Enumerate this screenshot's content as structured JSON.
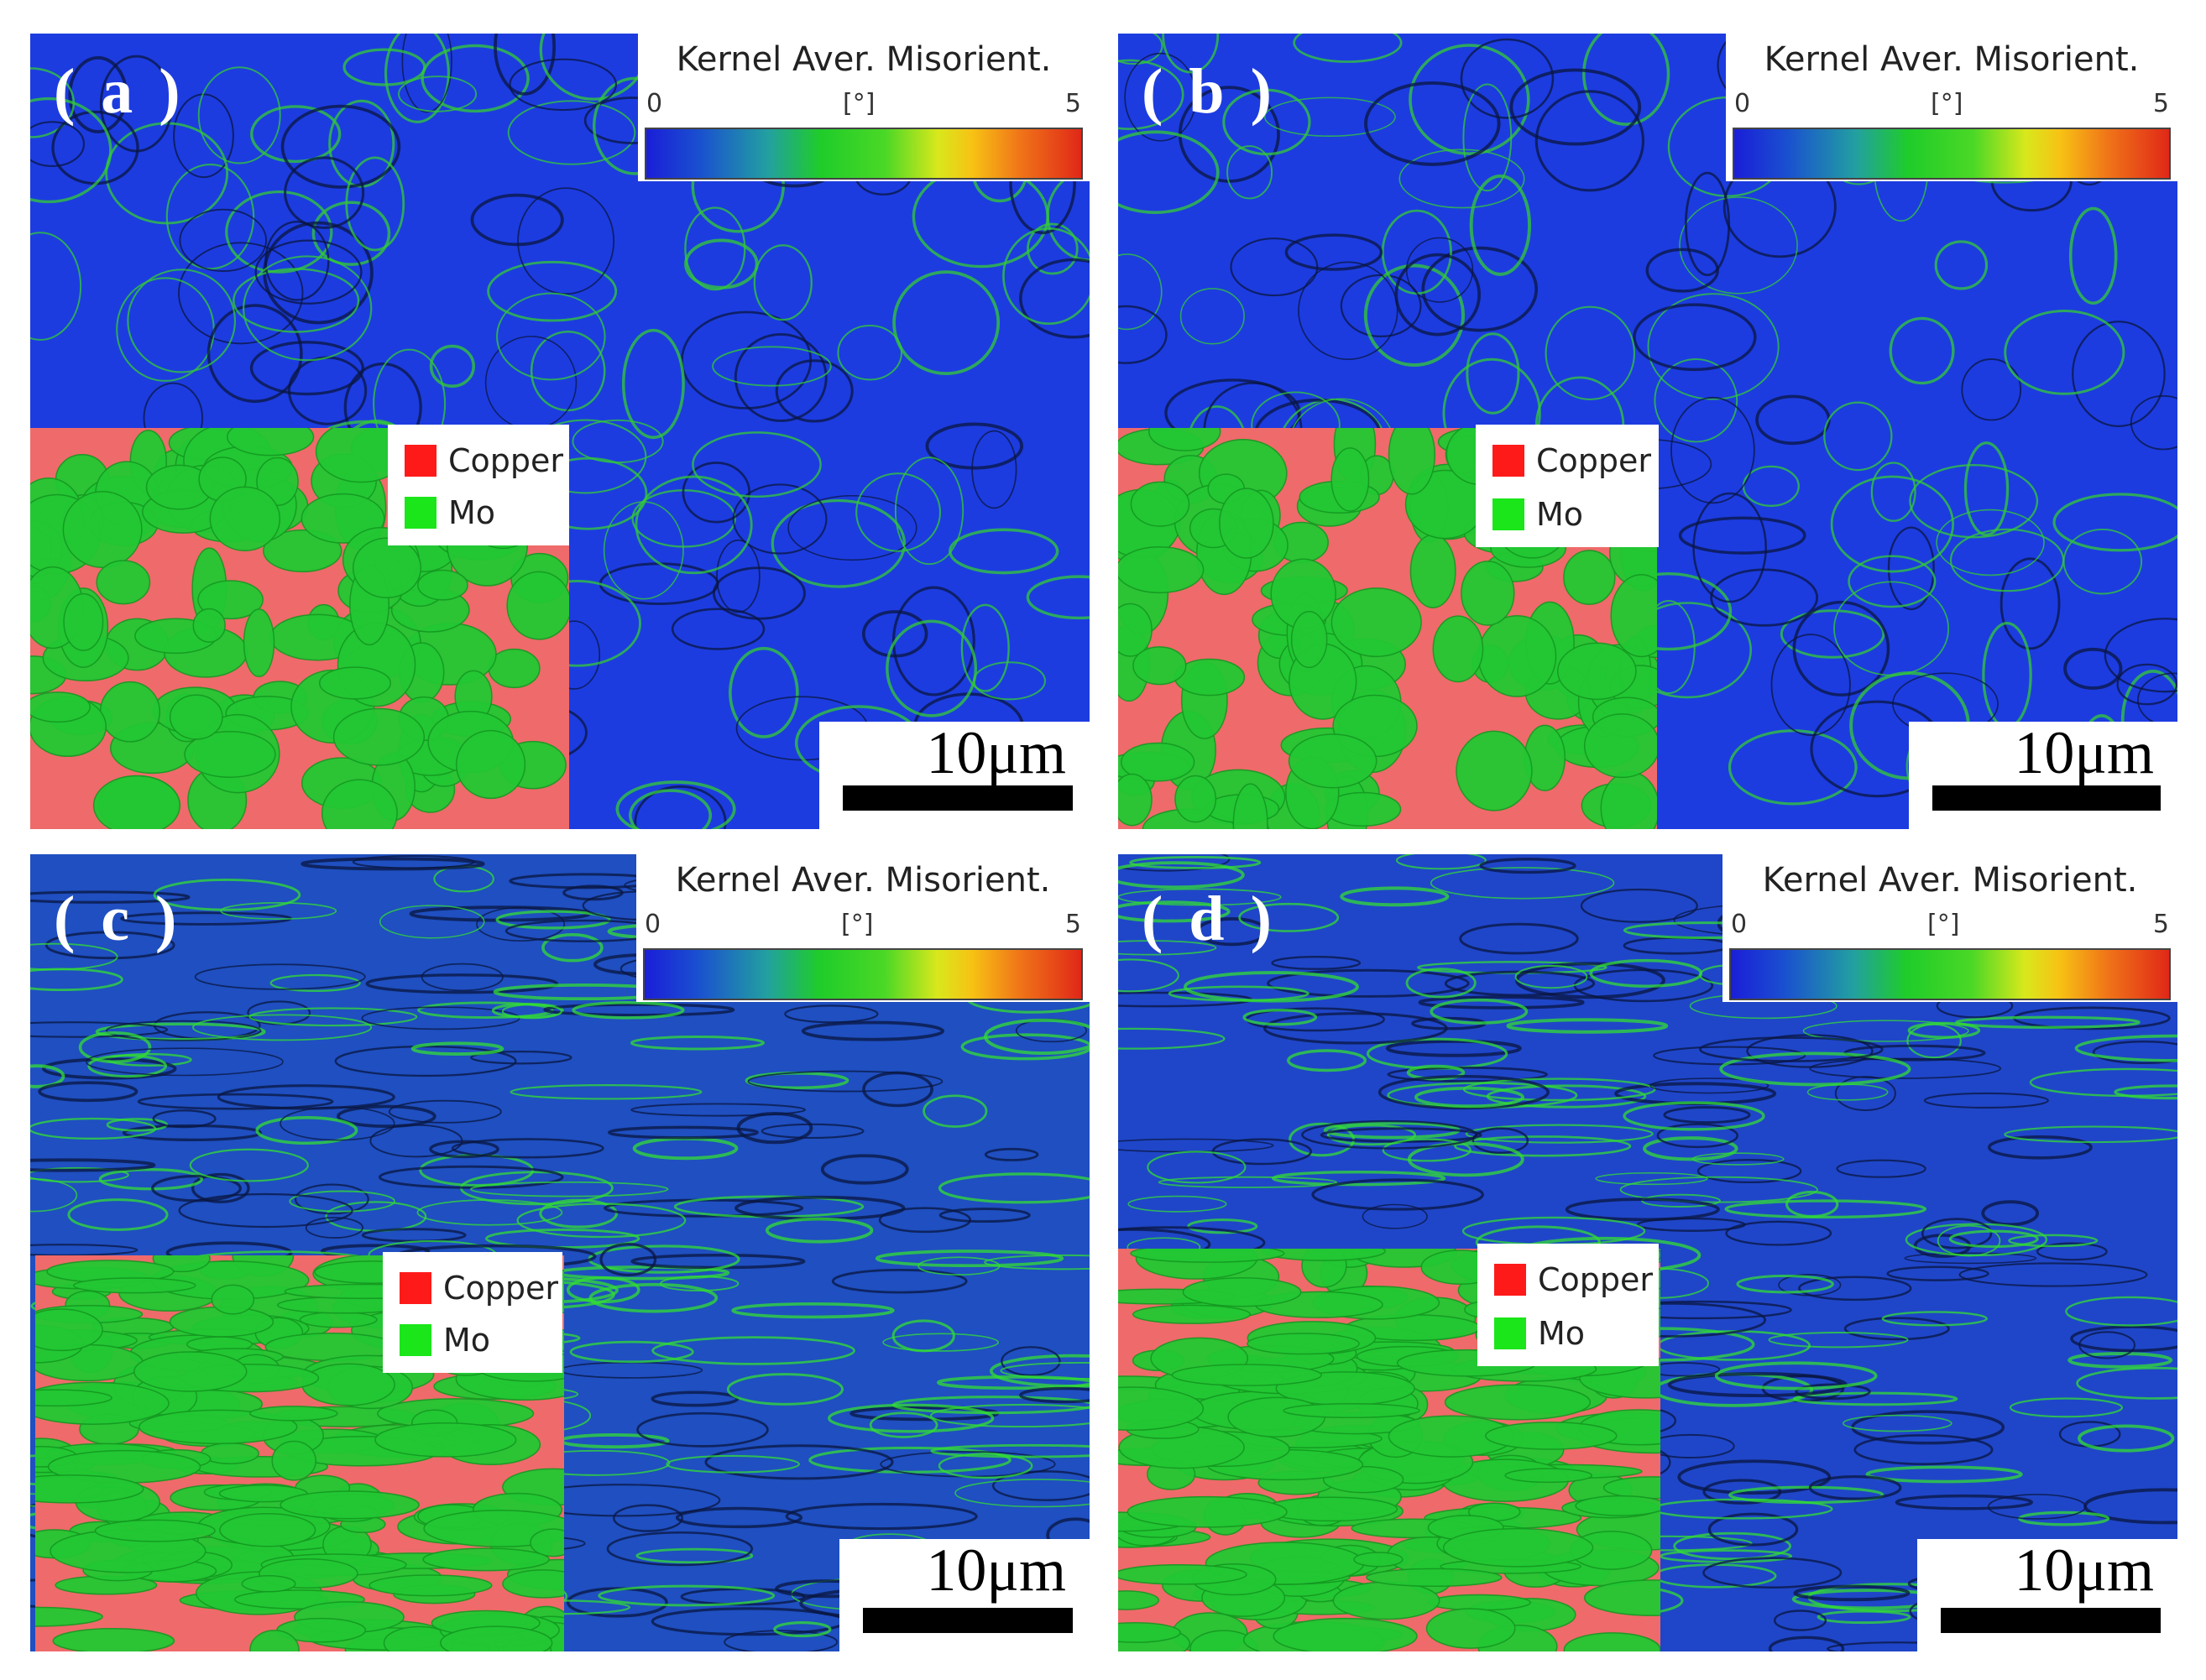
{
  "figure": {
    "colorbar": {
      "title": "Kernel Aver. Misorient.",
      "min": "0",
      "unit": "[°]",
      "max": "5"
    },
    "legend": [
      {
        "label": "Copper",
        "color": "#ff1a1a"
      },
      {
        "label": "Mo",
        "color": "#1ae61a"
      }
    ],
    "scale_bar": "10μm",
    "panels": [
      {
        "id": "a",
        "label": "( a )",
        "map_color": "#1c3ce0",
        "accent_color": "#33cc33",
        "phase_pattern": "equiaxed"
      },
      {
        "id": "b",
        "label": "( b )",
        "map_color": "#1c3ce0",
        "accent_color": "#33cc33",
        "phase_pattern": "equiaxed"
      },
      {
        "id": "c",
        "label": "( c )",
        "map_color": "#1f4fc0",
        "accent_color": "#33dd33",
        "phase_pattern": "elongated"
      },
      {
        "id": "d",
        "label": "( d )",
        "map_color": "#1f46c8",
        "accent_color": "#33dd33",
        "phase_pattern": "elongated"
      }
    ],
    "colors": {
      "copper_phase": "#ef6a6a",
      "mo_phase": "#22c833",
      "boundary": "#0a1540"
    }
  }
}
